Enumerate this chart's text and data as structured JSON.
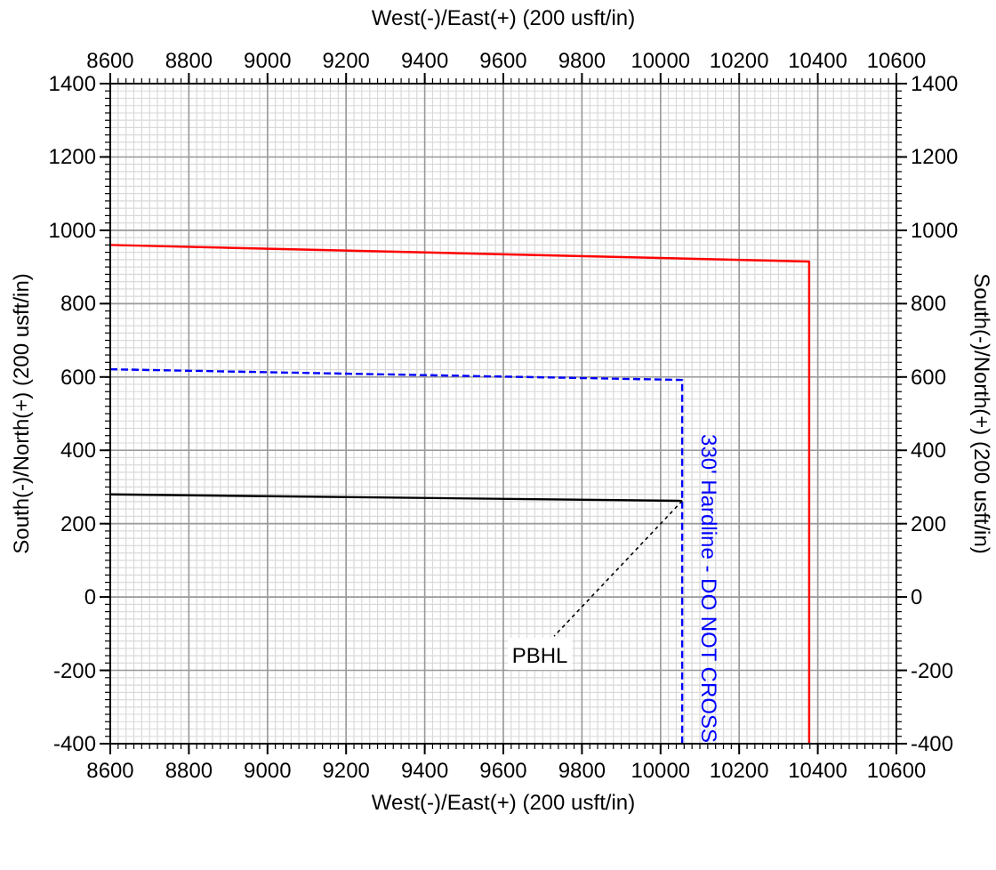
{
  "chart_data": {
    "type": "line",
    "xlabel": "West(-)/East(+) (200 usft/in)",
    "x2label": "West(-)/East(+) (200 usft/in)",
    "ylabel": "South(-)/North(+) (200 usft/in)",
    "y2label": "South(-)/North(+) (200 usft/in)",
    "xlim": [
      8600,
      10600
    ],
    "xticks": [
      8600,
      8800,
      9000,
      9200,
      9400,
      9600,
      9800,
      10000,
      10200,
      10400,
      10600
    ],
    "x2lim": [
      8600,
      10600
    ],
    "x2ticks": [
      8600,
      8800,
      9000,
      9200,
      9400,
      9600,
      9800,
      10000,
      10200,
      10400,
      10600
    ],
    "ylim": [
      -400,
      1400
    ],
    "yticks": [
      -400,
      -200,
      0,
      200,
      400,
      600,
      800,
      1000,
      1200,
      1400
    ],
    "y2lim": [
      -400,
      1400
    ],
    "y2ticks": [
      -400,
      -200,
      0,
      200,
      400,
      600,
      800,
      1000,
      1200,
      1400
    ],
    "grid": true,
    "series": [
      {
        "color": "#ff0000",
        "line_style": "solid",
        "x": [
          8600,
          10378,
          10378
        ],
        "values": [
          960,
          915,
          -400
        ]
      },
      {
        "name": "330' Hardline - DO NOT CROSS",
        "color": "#0000ff",
        "line_style": "dashed",
        "x": [
          8600,
          10055,
          10055
        ],
        "values": [
          621,
          592,
          -400
        ]
      },
      {
        "color": "#000000",
        "line_style": "solid",
        "x": [
          8600,
          10055
        ],
        "values": [
          280,
          262
        ]
      }
    ],
    "annotations": [
      {
        "text": "PBHL",
        "x": 10055,
        "y": 262
      }
    ]
  }
}
